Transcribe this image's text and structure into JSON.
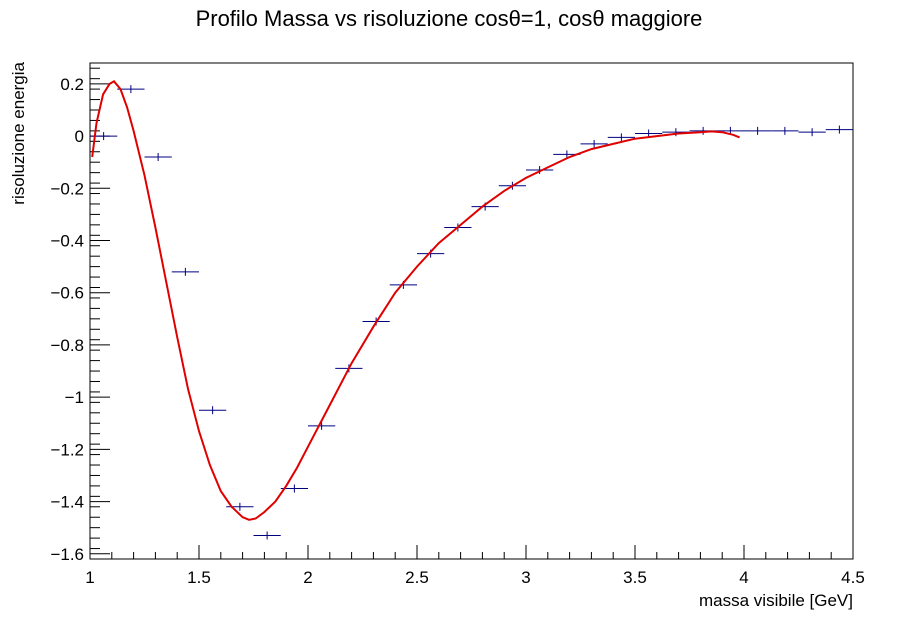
{
  "chart_data": {
    "type": "scatter",
    "title": "Profilo Massa vs risoluzione cosθ=1,  cosθ maggiore",
    "xlabel": "massa visibile [GeV]",
    "ylabel": "risoluzione energia",
    "xlim": [
      1,
      4.5
    ],
    "ylim": [
      -1.62,
      0.28
    ],
    "xticks": [
      "1",
      "1.5",
      "2",
      "2.5",
      "3",
      "3.5",
      "4",
      "4.5"
    ],
    "yticks": [
      "0.2",
      "0",
      "−0.2",
      "−0.4",
      "−0.6",
      "−0.8",
      "−1",
      "−1.2",
      "−1.4",
      "−1.6"
    ],
    "series": [
      {
        "type": "profile",
        "color": "#000080",
        "bin_half_width": 0.0625,
        "points": [
          {
            "x": 1.0625,
            "y": 0.0
          },
          {
            "x": 1.1875,
            "y": 0.18
          },
          {
            "x": 1.3125,
            "y": -0.08
          },
          {
            "x": 1.4375,
            "y": -0.52
          },
          {
            "x": 1.5625,
            "y": -1.05
          },
          {
            "x": 1.6875,
            "y": -1.42
          },
          {
            "x": 1.8125,
            "y": -1.53
          },
          {
            "x": 1.9375,
            "y": -1.35
          },
          {
            "x": 2.0625,
            "y": -1.11
          },
          {
            "x": 2.1875,
            "y": -0.89
          },
          {
            "x": 2.3125,
            "y": -0.71
          },
          {
            "x": 2.4375,
            "y": -0.57
          },
          {
            "x": 2.5625,
            "y": -0.45
          },
          {
            "x": 2.6875,
            "y": -0.35
          },
          {
            "x": 2.8125,
            "y": -0.27
          },
          {
            "x": 2.9375,
            "y": -0.19
          },
          {
            "x": 3.0625,
            "y": -0.13
          },
          {
            "x": 3.1875,
            "y": -0.07
          },
          {
            "x": 3.3125,
            "y": -0.03
          },
          {
            "x": 3.4375,
            "y": -0.005
          },
          {
            "x": 3.5625,
            "y": 0.01
          },
          {
            "x": 3.6875,
            "y": 0.015
          },
          {
            "x": 3.8125,
            "y": 0.02
          },
          {
            "x": 3.9375,
            "y": 0.02
          },
          {
            "x": 4.0625,
            "y": 0.02
          },
          {
            "x": 4.1875,
            "y": 0.02
          },
          {
            "x": 4.3125,
            "y": 0.015
          },
          {
            "x": 4.4375,
            "y": 0.025
          }
        ]
      },
      {
        "type": "fit",
        "color": "#e00000",
        "points": [
          {
            "x": 1.01,
            "y": -0.08
          },
          {
            "x": 1.03,
            "y": 0.05
          },
          {
            "x": 1.06,
            "y": 0.16
          },
          {
            "x": 1.09,
            "y": 0.2
          },
          {
            "x": 1.11,
            "y": 0.21
          },
          {
            "x": 1.14,
            "y": 0.18
          },
          {
            "x": 1.17,
            "y": 0.11
          },
          {
            "x": 1.2,
            "y": 0.02
          },
          {
            "x": 1.25,
            "y": -0.15
          },
          {
            "x": 1.3,
            "y": -0.35
          },
          {
            "x": 1.35,
            "y": -0.56
          },
          {
            "x": 1.4,
            "y": -0.77
          },
          {
            "x": 1.45,
            "y": -0.97
          },
          {
            "x": 1.5,
            "y": -1.13
          },
          {
            "x": 1.55,
            "y": -1.26
          },
          {
            "x": 1.6,
            "y": -1.36
          },
          {
            "x": 1.65,
            "y": -1.42
          },
          {
            "x": 1.7,
            "y": -1.46
          },
          {
            "x": 1.73,
            "y": -1.47
          },
          {
            "x": 1.76,
            "y": -1.465
          },
          {
            "x": 1.8,
            "y": -1.44
          },
          {
            "x": 1.85,
            "y": -1.4
          },
          {
            "x": 1.9,
            "y": -1.34
          },
          {
            "x": 1.95,
            "y": -1.27
          },
          {
            "x": 2.0,
            "y": -1.19
          },
          {
            "x": 2.1,
            "y": -1.03
          },
          {
            "x": 2.2,
            "y": -0.87
          },
          {
            "x": 2.3,
            "y": -0.73
          },
          {
            "x": 2.4,
            "y": -0.6
          },
          {
            "x": 2.5,
            "y": -0.5
          },
          {
            "x": 2.6,
            "y": -0.41
          },
          {
            "x": 2.7,
            "y": -0.34
          },
          {
            "x": 2.8,
            "y": -0.27
          },
          {
            "x": 2.9,
            "y": -0.21
          },
          {
            "x": 3.0,
            "y": -0.16
          },
          {
            "x": 3.1,
            "y": -0.12
          },
          {
            "x": 3.2,
            "y": -0.08
          },
          {
            "x": 3.3,
            "y": -0.05
          },
          {
            "x": 3.4,
            "y": -0.03
          },
          {
            "x": 3.5,
            "y": -0.01
          },
          {
            "x": 3.6,
            "y": 0.0
          },
          {
            "x": 3.7,
            "y": 0.01
          },
          {
            "x": 3.8,
            "y": 0.015
          },
          {
            "x": 3.85,
            "y": 0.018
          },
          {
            "x": 3.9,
            "y": 0.015
          },
          {
            "x": 3.95,
            "y": 0.005
          },
          {
            "x": 3.98,
            "y": -0.005
          }
        ]
      }
    ],
    "grid": false,
    "legend": "none"
  }
}
